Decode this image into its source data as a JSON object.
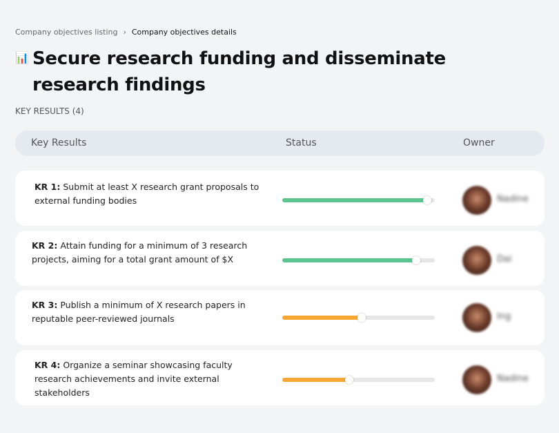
{
  "breadcrumb": {
    "parent": "Company objectives listing",
    "separator": "›",
    "current": "Company objectives details"
  },
  "title": "Secure research funding and disseminate research findings",
  "title_icon": "building-chart-icon",
  "key_results_label": "KEY RESULTS (4)",
  "columns": {
    "key_results": "Key Results",
    "status": "Status",
    "owner": "Owner"
  },
  "colors": {
    "green": "#5ac58f",
    "orange": "#f9a633"
  },
  "rows": [
    {
      "id": "KR 1:",
      "text": "Submit at least X research grant proposals to external funding bodies",
      "progress": 95,
      "color": "#5ac58f",
      "owner": "Nadine"
    },
    {
      "id": "KR 2:",
      "text": "Attain funding for a minimum of 3 research projects, aiming for a total grant amount of $X",
      "progress": 88,
      "color": "#5ac58f",
      "owner": "Dai"
    },
    {
      "id": "KR 3:",
      "text": "Publish a minimum of X research papers in reputable peer-reviewed journals",
      "progress": 52,
      "color": "#f9a633",
      "owner": "Ing"
    },
    {
      "id": "KR 4:",
      "text": "Organize a seminar showcasing faculty research achievements and invite external stakeholders",
      "progress": 44,
      "color": "#f9a633",
      "owner": "Nadine"
    }
  ]
}
